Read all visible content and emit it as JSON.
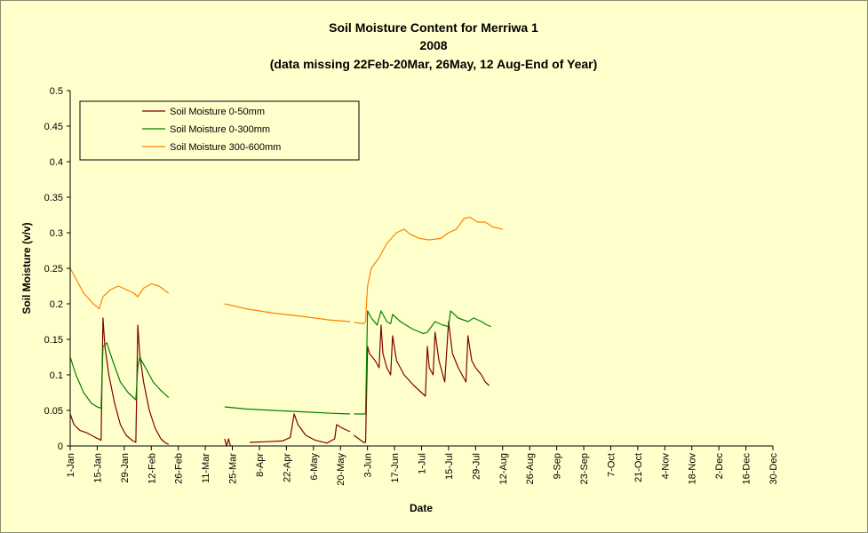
{
  "chart_data": {
    "type": "line",
    "title_lines": [
      "Soil Moisture Content for Merriwa 1",
      "2008",
      "(data missing 22Feb-20Mar, 26May, 12 Aug-End of Year)"
    ],
    "xlabel": "Date",
    "ylabel": "Soil Moisture (v/v)",
    "ylim": [
      0,
      0.5
    ],
    "y_ticks": [
      "0",
      "0.05",
      "0.1",
      "0.15",
      "0.2",
      "0.25",
      "0.3",
      "0.35",
      "0.4",
      "0.45",
      "0.5"
    ],
    "x_ticks": [
      "1-Jan",
      "15-Jan",
      "29-Jan",
      "12-Feb",
      "26-Feb",
      "11-Mar",
      "25-Mar",
      "8-Apr",
      "22-Apr",
      "6-May",
      "20-May",
      "3-Jun",
      "17-Jun",
      "1-Jul",
      "15-Jul",
      "29-Jul",
      "12-Aug",
      "26-Aug",
      "9-Sep",
      "23-Sep",
      "7-Oct",
      "21-Oct",
      "4-Nov",
      "18-Nov",
      "2-Dec",
      "16-Dec",
      "30-Dec"
    ],
    "grid": false,
    "legend_position": "top-left",
    "series": [
      {
        "name": "Soil Moisture 0-50mm",
        "color": "#800000",
        "segments": [
          [
            [
              "1-Jan",
              0.045
            ],
            [
              "3-Jan",
              0.03
            ],
            [
              "6-Jan",
              0.022
            ],
            [
              "10-Jan",
              0.018
            ],
            [
              "14-Jan",
              0.012
            ],
            [
              "17-Jan",
              0.008
            ],
            [
              "18-Jan",
              0.18
            ],
            [
              "19-Jan",
              0.14
            ],
            [
              "21-Jan",
              0.1
            ],
            [
              "24-Jan",
              0.06
            ],
            [
              "27-Jan",
              0.03
            ],
            [
              "30-Jan",
              0.015
            ],
            [
              "2-Feb",
              0.008
            ],
            [
              "4-Feb",
              0.005
            ],
            [
              "5-Feb",
              0.17
            ],
            [
              "6-Feb",
              0.13
            ],
            [
              "8-Feb",
              0.09
            ],
            [
              "11-Feb",
              0.05
            ],
            [
              "14-Feb",
              0.025
            ],
            [
              "17-Feb",
              0.01
            ],
            [
              "19-Feb",
              0.005
            ],
            [
              "21-Feb",
              0.002
            ]
          ],
          [
            [
              "21-Mar",
              0.01
            ],
            [
              "22-Mar",
              0.0
            ],
            [
              "23-Mar",
              0.01
            ],
            [
              "24-Mar",
              0.0
            ]
          ],
          [
            [
              "3-Apr",
              0.005
            ],
            [
              "12-Apr",
              0.006
            ],
            [
              "20-Apr",
              0.007
            ],
            [
              "24-Apr",
              0.012
            ],
            [
              "26-Apr",
              0.045
            ],
            [
              "28-Apr",
              0.03
            ],
            [
              "2-May",
              0.015
            ],
            [
              "7-May",
              0.008
            ],
            [
              "13-May",
              0.004
            ],
            [
              "17-May",
              0.01
            ],
            [
              "18-May",
              0.03
            ],
            [
              "21-May",
              0.025
            ],
            [
              "25-May",
              0.02
            ]
          ],
          [
            [
              "27-May",
              0.015
            ],
            [
              "1-Jun",
              0.005
            ],
            [
              "2-Jun",
              0.005
            ],
            [
              "3-Jun",
              0.14
            ],
            [
              "4-Jun",
              0.13
            ],
            [
              "7-Jun",
              0.12
            ],
            [
              "9-Jun",
              0.11
            ],
            [
              "10-Jun",
              0.17
            ],
            [
              "11-Jun",
              0.13
            ],
            [
              "13-Jun",
              0.11
            ],
            [
              "15-Jun",
              0.1
            ],
            [
              "16-Jun",
              0.155
            ],
            [
              "18-Jun",
              0.12
            ],
            [
              "22-Jun",
              0.1
            ],
            [
              "27-Jun",
              0.085
            ],
            [
              "3-Jul",
              0.07
            ],
            [
              "4-Jul",
              0.14
            ],
            [
              "5-Jul",
              0.11
            ],
            [
              "7-Jul",
              0.1
            ],
            [
              "8-Jul",
              0.16
            ],
            [
              "10-Jul",
              0.12
            ],
            [
              "13-Jul",
              0.09
            ],
            [
              "15-Jul",
              0.175
            ],
            [
              "17-Jul",
              0.13
            ],
            [
              "20-Jul",
              0.11
            ],
            [
              "24-Jul",
              0.09
            ],
            [
              "25-Jul",
              0.155
            ],
            [
              "27-Jul",
              0.12
            ],
            [
              "29-Jul",
              0.11
            ],
            [
              "1-Aug",
              0.1
            ],
            [
              "3-Aug",
              0.09
            ],
            [
              "5-Aug",
              0.085
            ]
          ]
        ]
      },
      {
        "name": "Soil Moisture 0-300mm",
        "color": "#008000",
        "segments": [
          [
            [
              "1-Jan",
              0.125
            ],
            [
              "4-Jan",
              0.1
            ],
            [
              "8-Jan",
              0.075
            ],
            [
              "12-Jan",
              0.06
            ],
            [
              "15-Jan",
              0.055
            ],
            [
              "17-Jan",
              0.053
            ],
            [
              "18-Jan",
              0.14
            ],
            [
              "20-Jan",
              0.145
            ],
            [
              "23-Jan",
              0.12
            ],
            [
              "27-Jan",
              0.09
            ],
            [
              "31-Jan",
              0.075
            ],
            [
              "4-Feb",
              0.065
            ],
            [
              "5-Feb",
              0.11
            ],
            [
              "6-Feb",
              0.125
            ],
            [
              "9-Feb",
              0.11
            ],
            [
              "13-Feb",
              0.09
            ],
            [
              "17-Feb",
              0.078
            ],
            [
              "21-Feb",
              0.068
            ]
          ],
          [
            [
              "21-Mar",
              0.055
            ],
            [
              "1-Apr",
              0.052
            ],
            [
              "15-Apr",
              0.05
            ],
            [
              "1-May",
              0.048
            ],
            [
              "15-May",
              0.046
            ],
            [
              "25-May",
              0.045
            ]
          ],
          [
            [
              "27-May",
              0.045
            ],
            [
              "2-Jun",
              0.045
            ],
            [
              "3-Jun",
              0.19
            ],
            [
              "5-Jun",
              0.18
            ],
            [
              "8-Jun",
              0.17
            ],
            [
              "10-Jun",
              0.19
            ],
            [
              "13-Jun",
              0.175
            ],
            [
              "15-Jun",
              0.172
            ],
            [
              "16-Jun",
              0.185
            ],
            [
              "20-Jun",
              0.175
            ],
            [
              "26-Jun",
              0.165
            ],
            [
              "2-Jul",
              0.158
            ],
            [
              "4-Jul",
              0.16
            ],
            [
              "8-Jul",
              0.175
            ],
            [
              "12-Jul",
              0.17
            ],
            [
              "15-Jul",
              0.168
            ],
            [
              "16-Jul",
              0.19
            ],
            [
              "20-Jul",
              0.18
            ],
            [
              "25-Jul",
              0.175
            ],
            [
              "28-Jul",
              0.18
            ],
            [
              "1-Aug",
              0.175
            ],
            [
              "4-Aug",
              0.17
            ],
            [
              "6-Aug",
              0.168
            ]
          ]
        ]
      },
      {
        "name": "Soil Moisture 300-600mm",
        "color": "#ff8000",
        "segments": [
          [
            [
              "1-Jan",
              0.25
            ],
            [
              "4-Jan",
              0.235
            ],
            [
              "8-Jan",
              0.215
            ],
            [
              "13-Jan",
              0.2
            ],
            [
              "16-Jan",
              0.193
            ],
            [
              "18-Jan",
              0.21
            ],
            [
              "22-Jan",
              0.22
            ],
            [
              "26-Jan",
              0.225
            ],
            [
              "30-Jan",
              0.22
            ],
            [
              "3-Feb",
              0.215
            ],
            [
              "5-Feb",
              0.21
            ],
            [
              "8-Feb",
              0.222
            ],
            [
              "12-Feb",
              0.228
            ],
            [
              "16-Feb",
              0.225
            ],
            [
              "21-Feb",
              0.215
            ]
          ],
          [
            [
              "21-Mar",
              0.2
            ],
            [
              "1-Apr",
              0.193
            ],
            [
              "15-Apr",
              0.187
            ],
            [
              "1-May",
              0.182
            ],
            [
              "15-May",
              0.177
            ],
            [
              "25-May",
              0.175
            ]
          ],
          [
            [
              "27-May",
              0.174
            ],
            [
              "1-Jun",
              0.172
            ],
            [
              "2-Jun",
              0.175
            ],
            [
              "3-Jun",
              0.225
            ],
            [
              "5-Jun",
              0.25
            ],
            [
              "9-Jun",
              0.265
            ],
            [
              "13-Jun",
              0.285
            ],
            [
              "18-Jun",
              0.3
            ],
            [
              "22-Jun",
              0.305
            ],
            [
              "25-Jun",
              0.298
            ],
            [
              "30-Jun",
              0.292
            ],
            [
              "5-Jul",
              0.29
            ],
            [
              "11-Jul",
              0.292
            ],
            [
              "15-Jul",
              0.3
            ],
            [
              "19-Jul",
              0.305
            ],
            [
              "23-Jul",
              0.32
            ],
            [
              "26-Jul",
              0.322
            ],
            [
              "30-Jul",
              0.315
            ],
            [
              "3-Aug",
              0.315
            ],
            [
              "7-Aug",
              0.308
            ],
            [
              "12-Aug",
              0.305
            ]
          ]
        ]
      }
    ]
  }
}
